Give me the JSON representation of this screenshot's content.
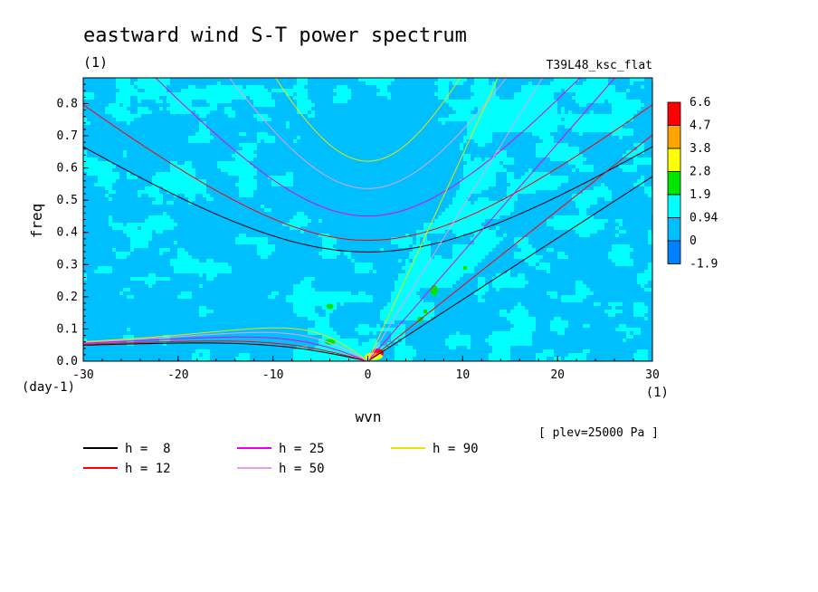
{
  "chart_data": {
    "type": "heatmap",
    "title": "eastward wind S-T power spectrum",
    "subtitle_left": "(1)",
    "subtitle_right": "T39L48_ksc_flat",
    "xlabel": "wvn",
    "ylabel": "freq",
    "x_unit_label": "(1)",
    "y_unit_label": "(day-1)",
    "xlim": [
      -30,
      30
    ],
    "ylim": [
      0,
      0.88
    ],
    "x_ticks": [
      -30,
      -20,
      -10,
      0,
      10,
      20,
      30
    ],
    "x_tick_labels": [
      "-30",
      "-20",
      "-10",
      "0",
      "10",
      "20",
      "30"
    ],
    "y_ticks": [
      0.0,
      0.1,
      0.2,
      0.3,
      0.4,
      0.5,
      0.6,
      0.7,
      0.8
    ],
    "y_tick_labels": [
      "0.0",
      "0.1",
      "0.2",
      "0.3",
      "0.4",
      "0.5",
      "0.6",
      "0.7",
      "0.8"
    ],
    "annotation": "[ plev=25000 Pa ]",
    "colorbar": {
      "labels": [
        "6.6",
        "4.7",
        "3.8",
        "2.8",
        "1.9",
        "0.94",
        "0",
        "-1.9"
      ],
      "colors": [
        "#ff0000",
        "#ffa500",
        "#ffff00",
        "#00e600",
        "#00ffff",
        "#00bfff",
        "#0080ff"
      ]
    },
    "dispersion_curves": [
      {
        "name": "h =  8",
        "h": 8,
        "color": "#000000"
      },
      {
        "name": "h = 12",
        "h": 12,
        "color": "#ff0000"
      },
      {
        "name": "h = 25",
        "h": 25,
        "color": "#e600e6"
      },
      {
        "name": "h = 50",
        "h": 50,
        "color": "#e6a0e6"
      },
      {
        "name": "h = 90",
        "h": 90,
        "color": "#e6e600"
      }
    ],
    "field_levels": {
      "background": "#00bfff",
      "band_values": [
        "0.94",
        "1.9",
        "2.8",
        "3.8",
        "4.7",
        "6.6"
      ]
    }
  }
}
